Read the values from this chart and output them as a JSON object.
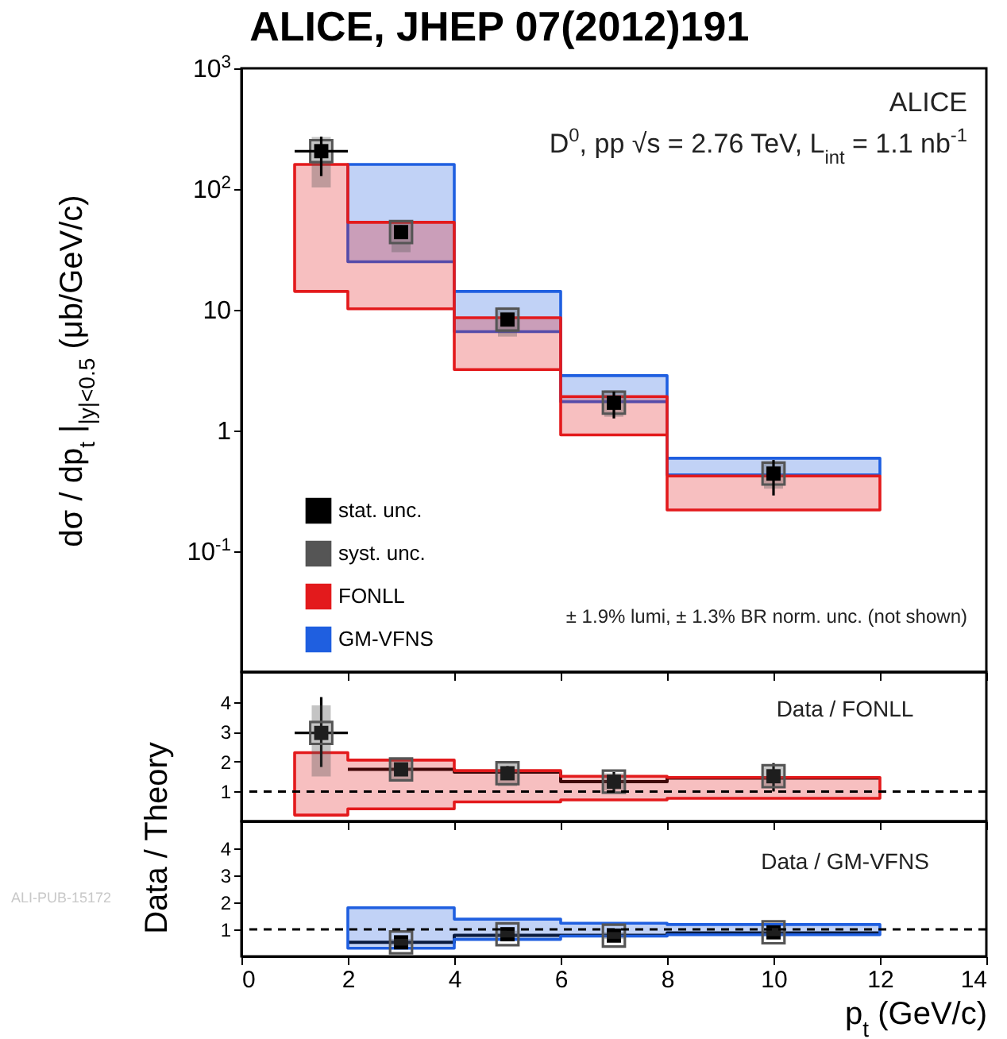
{
  "chart_data": [
    {
      "type": "line",
      "title": "ALICE, JHEP 07(2012)191",
      "ylabel": "dσ / dp$_{t}$ |$_{|y|<0.5}$   (μb/GeV/c)",
      "log": true,
      "xlim": [
        0,
        14
      ],
      "xticks": [
        0,
        2,
        4,
        6,
        8,
        10,
        12,
        14
      ],
      "ylim": [
        0.01,
        1000
      ],
      "yticks": [
        {
          "value": 0.1,
          "label": "10$^{-1}$"
        },
        1,
        10,
        {
          "value": 100,
          "label": "10$^{2}$"
        },
        {
          "value": 1000,
          "label": "10$^{3}$"
        }
      ],
      "tick_labels": "y",
      "legend": "bottom left",
      "annotations": [
        "ALICE",
        "D$^{0}$, pp √s = 2.76 TeV, L$_{int}$ = 1.1 nb$^{-1}$",
        "± 1.9% lumi, ± 1.3% BR norm. unc. (not shown)"
      ],
      "series": [
        {
          "name": "stat. unc.",
          "type": "scatter",
          "marker": "square",
          "color": "#000000",
          "x": [
            1.5,
            3,
            5,
            7,
            10
          ],
          "values": [
            206,
            44,
            8.3,
            1.7,
            0.44
          ],
          "errors": [
            [
              128,
              272
            ],
            [
              39,
              50
            ],
            [
              7.3,
              9.3
            ],
            [
              1.26,
              2.1
            ],
            [
              0.29,
              0.57
            ]
          ],
          "xerrors": [
            0.5,
            null,
            null,
            null,
            null
          ]
        },
        {
          "name": "syst. unc.",
          "type": "scatter",
          "marker": "square",
          "color": "#555555",
          "x": [
            1.5,
            3,
            5,
            7,
            10
          ],
          "values": [
            206,
            44,
            8.3,
            1.7,
            0.44
          ],
          "errors": [
            [
              103,
              270
            ],
            [
              30,
              55
            ],
            [
              6.0,
              10.5
            ],
            [
              1.3,
              2.15
            ],
            [
              0.33,
              0.53
            ]
          ]
        },
        {
          "name": "FONLL",
          "color": "#e31a1c",
          "x": [
            1,
            2,
            2,
            4,
            4,
            6,
            6,
            8,
            8,
            12
          ],
          "values": [
            null,
            null,
            null,
            null,
            null,
            null,
            null,
            null,
            null,
            null
          ],
          "lower": [
            14.2,
            14.2,
            10.2,
            10.2,
            3.2,
            3.2,
            0.92,
            0.92,
            0.22,
            0.22
          ],
          "upper": [
            160,
            160,
            53,
            53,
            8.6,
            8.6,
            1.91,
            1.91,
            0.42,
            0.42
          ]
        },
        {
          "name": "GM-VFNS",
          "color": "#1f5fe0",
          "x": [
            2,
            4,
            4,
            6,
            6,
            8,
            8,
            12
          ],
          "values": [
            null,
            null,
            null,
            null,
            null,
            null,
            null,
            null
          ],
          "lower": [
            25,
            25,
            6.6,
            6.6,
            1.73,
            1.73,
            0.43,
            0.43
          ],
          "upper": [
            160,
            160,
            14.2,
            14.2,
            2.85,
            2.85,
            0.59,
            0.59
          ]
        }
      ]
    },
    {
      "type": "line",
      "ylabel": "Data  /  Theory",
      "xlim": [
        0,
        14
      ],
      "xticks": [
        0,
        2,
        4,
        6,
        8,
        10,
        12,
        14
      ],
      "ylim": [
        0,
        5
      ],
      "yticks": [
        1,
        2,
        3,
        4
      ],
      "tick_labels": "y",
      "annotations": [
        "Data / FONLL"
      ],
      "ref_lines": [
        {
          "axis": "y",
          "value": 1,
          "line_style": "dashed"
        }
      ],
      "series": [
        {
          "color": "#e31a1c",
          "x": [
            1,
            2,
            2,
            4,
            4,
            6,
            6,
            8,
            8,
            12
          ],
          "values": [
            null,
            null,
            null,
            null,
            null,
            null,
            null,
            null,
            null,
            null
          ],
          "lower": [
            0.21,
            0.21,
            0.42,
            0.42,
            0.65,
            0.65,
            0.72,
            0.72,
            0.77,
            0.77
          ],
          "upper": [
            2.3,
            2.3,
            2.05,
            2.05,
            1.7,
            1.7,
            1.51,
            1.51,
            1.47,
            1.47
          ]
        },
        {
          "color": "#000000",
          "x": [
            2,
            4,
            4,
            6,
            6,
            8,
            8,
            12
          ],
          "values": [
            1.74,
            1.74,
            1.65,
            1.65,
            1.33,
            1.33,
            1.45,
            1.45
          ]
        },
        {
          "type": "scatter",
          "marker": "square",
          "color": "#555555",
          "x": [
            1.5,
            3,
            5,
            7,
            10
          ],
          "values": [
            2.96,
            1.74,
            1.61,
            1.33,
            1.51
          ],
          "errors": [
            [
              1.5,
              3.88
            ],
            [
              1.39,
              2.12
            ],
            [
              1.18,
              2.0
            ],
            [
              1.04,
              1.61
            ],
            [
              1.12,
              1.82
            ]
          ]
        },
        {
          "type": "scatter",
          "marker": "square",
          "color": "#000000",
          "x": [
            1.5,
            3,
            5,
            7,
            10
          ],
          "values": [
            2.96,
            1.74,
            1.61,
            1.33,
            1.51
          ],
          "errors": [
            [
              1.82,
              4.16
            ],
            [
              1.55,
              1.95
            ],
            [
              1.4,
              1.85
            ],
            [
              0.95,
              1.65
            ],
            [
              1.0,
              1.95
            ]
          ],
          "xerrors": [
            0.5,
            null,
            null,
            null,
            null
          ]
        }
      ]
    },
    {
      "type": "line",
      "xlabel": "p$_{t}$  (GeV/c)",
      "xlim": [
        0,
        14
      ],
      "xticks": [
        0,
        2,
        4,
        6,
        8,
        10,
        12,
        14
      ],
      "ylim": [
        0,
        5
      ],
      "yticks": [
        1,
        2,
        3,
        4
      ],
      "annotations": [
        "Data / GM-VFNS",
        "ALI-PUB-15172"
      ],
      "ref_lines": [
        {
          "axis": "y",
          "value": 1,
          "line_style": "dashed"
        }
      ],
      "series": [
        {
          "color": "#1f5fe0",
          "x": [
            2,
            4,
            4,
            6,
            6,
            8,
            8,
            12
          ],
          "values": [
            null,
            null,
            null,
            null,
            null,
            null,
            null,
            null
          ],
          "lower": [
            0.3,
            0.3,
            0.63,
            0.63,
            0.75,
            0.75,
            0.8,
            0.8
          ],
          "upper": [
            1.8,
            1.8,
            1.38,
            1.38,
            1.23,
            1.23,
            1.18,
            1.18
          ]
        },
        {
          "color": "#000000",
          "x": [
            2,
            4,
            4,
            6,
            6,
            8,
            8,
            12
          ],
          "values": [
            0.52,
            0.52,
            0.78,
            0.78,
            0.78,
            0.78,
            0.87,
            0.87
          ]
        },
        {
          "type": "scatter",
          "marker": "square",
          "color": "#555555",
          "x": [
            3,
            5,
            7,
            10
          ],
          "values": [
            0.52,
            0.82,
            0.77,
            0.89
          ],
          "errors": [
            [
              0.4,
              0.65
            ],
            [
              0.7,
              0.95
            ],
            [
              0.65,
              0.9
            ],
            [
              0.75,
              1.05
            ]
          ]
        },
        {
          "type": "scatter",
          "marker": "square",
          "color": "#000000",
          "x": [
            3,
            5,
            7,
            10
          ],
          "values": [
            0.52,
            0.82,
            0.77,
            0.89
          ]
        }
      ]
    }
  ]
}
